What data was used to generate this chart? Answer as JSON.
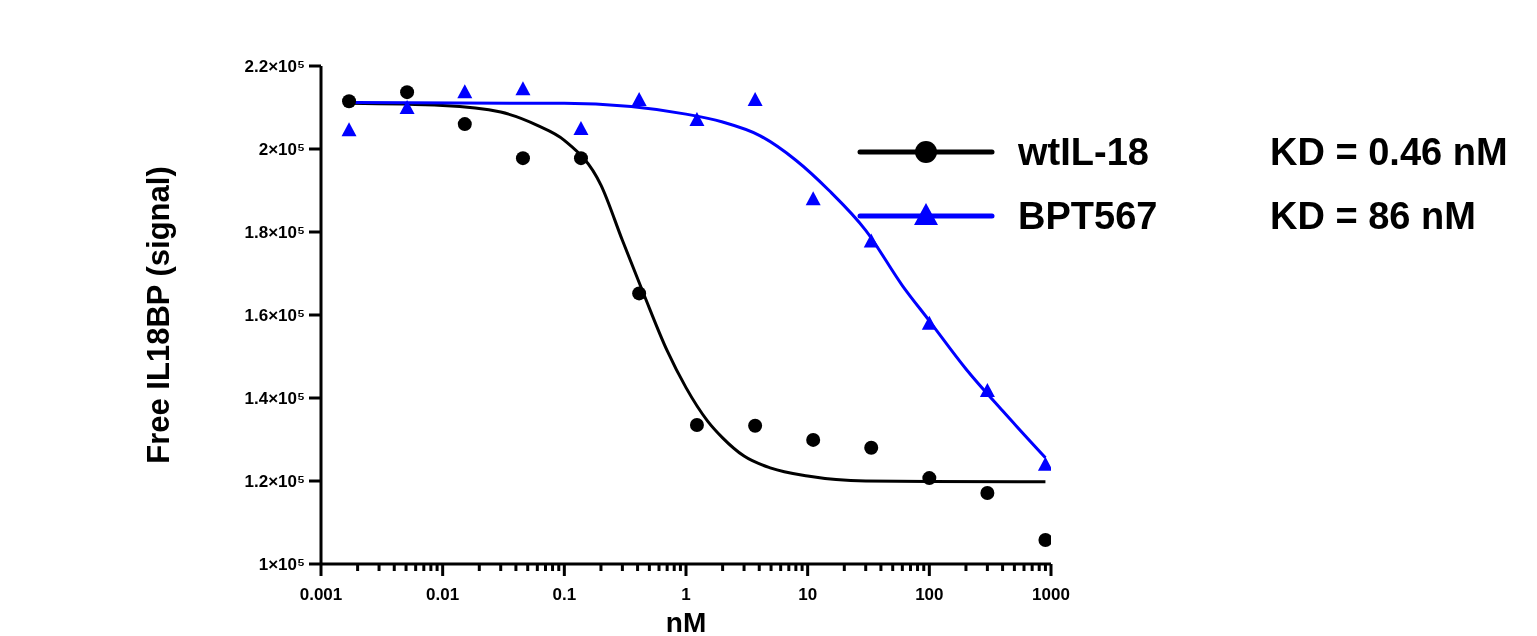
{
  "chart_data": {
    "type": "scatter",
    "xlabel": "nM",
    "ylabel": "Free IL18BP (signal)",
    "log": "x",
    "grid": false,
    "legend": "top right",
    "annotations": [
      "KD = 0.46 nM",
      "KD = 86 nM"
    ],
    "xlim": [
      0.001,
      1000
    ],
    "ylim": [
      100000,
      220000
    ],
    "xticks": [
      0.001,
      {
        "value": 0.002,
        "label": null
      },
      {
        "value": 0.003,
        "label": null
      },
      {
        "value": 0.004,
        "label": null
      },
      {
        "value": 0.005,
        "label": null
      },
      {
        "value": 0.006,
        "label": null
      },
      {
        "value": 0.007,
        "label": null
      },
      {
        "value": 0.008,
        "label": null
      },
      {
        "value": 0.009,
        "label": null
      },
      0.01,
      {
        "value": 0.02,
        "label": null
      },
      {
        "value": 0.03,
        "label": null
      },
      {
        "value": 0.04,
        "label": null
      },
      {
        "value": 0.05,
        "label": null
      },
      {
        "value": 0.06,
        "label": null
      },
      {
        "value": 0.07,
        "label": null
      },
      {
        "value": 0.08,
        "label": null
      },
      {
        "value": 0.09,
        "label": null
      },
      0.1,
      {
        "value": 0.2,
        "label": null
      },
      {
        "value": 0.3,
        "label": null
      },
      {
        "value": 0.4,
        "label": null
      },
      {
        "value": 0.5,
        "label": null
      },
      {
        "value": 0.6,
        "label": null
      },
      {
        "value": 0.7,
        "label": null
      },
      {
        "value": 0.8,
        "label": null
      },
      {
        "value": 0.9,
        "label": null
      },
      1,
      {
        "value": 2,
        "label": null
      },
      {
        "value": 3,
        "label": null
      },
      {
        "value": 4,
        "label": null
      },
      {
        "value": 5,
        "label": null
      },
      {
        "value": 6,
        "label": null
      },
      {
        "value": 7,
        "label": null
      },
      {
        "value": 8,
        "label": null
      },
      {
        "value": 9,
        "label": null
      },
      10,
      {
        "value": 20,
        "label": null
      },
      {
        "value": 30,
        "label": null
      },
      {
        "value": 40,
        "label": null
      },
      {
        "value": 50,
        "label": null
      },
      {
        "value": 60,
        "label": null
      },
      {
        "value": 70,
        "label": null
      },
      {
        "value": 80,
        "label": null
      },
      {
        "value": 90,
        "label": null
      },
      100,
      {
        "value": 200,
        "label": null
      },
      {
        "value": 300,
        "label": null
      },
      {
        "value": 400,
        "label": null
      },
      {
        "value": 500,
        "label": null
      },
      {
        "value": 600,
        "label": null
      },
      {
        "value": 700,
        "label": null
      },
      {
        "value": 800,
        "label": null
      },
      {
        "value": 900,
        "label": null
      },
      1000
    ],
    "yticks": [
      {
        "value": 100000,
        "label": "1×10⁵"
      },
      {
        "value": 120000,
        "label": "1.2×10⁵"
      },
      {
        "value": 140000,
        "label": "1.4×10⁵"
      },
      {
        "value": 160000,
        "label": "1.6×10⁵"
      },
      {
        "value": 180000,
        "label": "1.8×10⁵"
      },
      {
        "value": 200000,
        "label": "2×10⁵"
      },
      {
        "value": 220000,
        "label": "2.2×10⁵"
      }
    ],
    "series": [
      {
        "name": "wtIL-18",
        "marker": "circle",
        "color": "#000000",
        "x": [
          0.0017,
          0.0051,
          0.0152,
          0.0457,
          0.137,
          0.412,
          1.23,
          3.7,
          11.1,
          33.3,
          100,
          300,
          900
        ],
        "values": [
          211500,
          213700,
          206000,
          197800,
          197800,
          165200,
          133500,
          133300,
          129900,
          128000,
          120700,
          117100,
          105800
        ]
      },
      {
        "name": "BPT567",
        "marker": "triangle",
        "color": "#0000ff",
        "x": [
          0.0017,
          0.0051,
          0.0152,
          0.0457,
          0.137,
          0.412,
          1.23,
          3.7,
          11.1,
          33.3,
          100,
          300,
          900
        ],
        "values": [
          204500,
          209900,
          213700,
          214400,
          204800,
          211800,
          207000,
          211800,
          187900,
          177700,
          157900,
          141700,
          123900
        ]
      },
      {
        "type": "line",
        "color": "#000000",
        "marker": "none",
        "x": [
          0.0017,
          0.01,
          0.03,
          0.06,
          0.1,
          0.2,
          0.3,
          0.45,
          0.7,
          1,
          1.5,
          2,
          3,
          5,
          10,
          30,
          100,
          900
        ],
        "values": [
          211000,
          210500,
          208900,
          205700,
          202100,
          191300,
          178000,
          165000,
          151400,
          142500,
          134500,
          130400,
          126000,
          123100,
          121200,
          120000,
          119900,
          119800
        ]
      },
      {
        "type": "line",
        "color": "#0000ff",
        "marker": "none",
        "x": [
          0.0017,
          0.1,
          1,
          2,
          4,
          8,
          15,
          30,
          60,
          100,
          200,
          400,
          900
        ],
        "values": [
          211200,
          211000,
          208400,
          206500,
          203300,
          197300,
          190000,
          180400,
          167100,
          158600,
          147000,
          136900,
          125600
        ]
      }
    ]
  }
}
